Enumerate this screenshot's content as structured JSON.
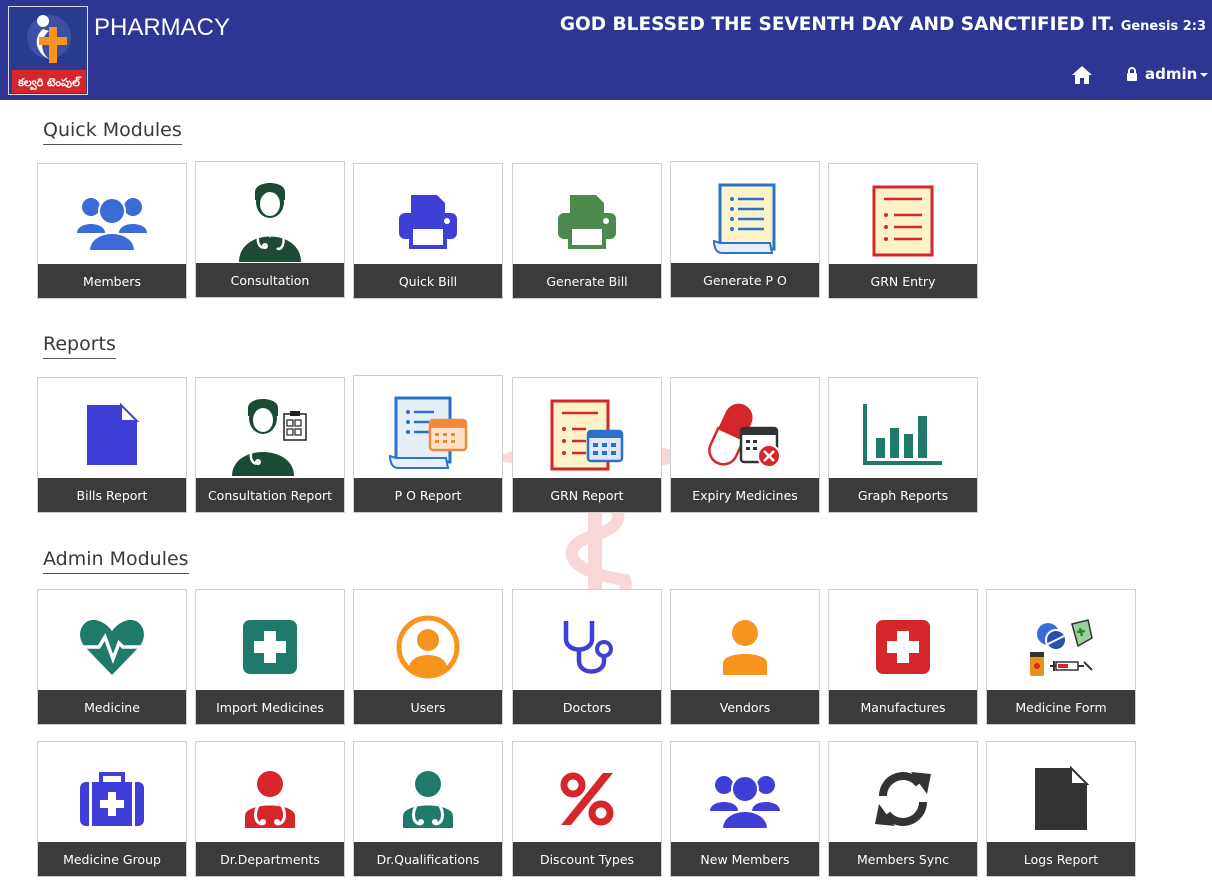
{
  "header": {
    "app_title": "PHARMACY",
    "verse": "GOD BLESSED THE SEVENTH DAY AND SANCTIFIED IT.",
    "verse_ref": "Genesis 2:3",
    "logo_text": "కల్వరి టెంపుల్",
    "user_label": "admin",
    "home_icon": "home-icon",
    "lock_icon": "lock-icon"
  },
  "sections": {
    "quick": "Quick Modules",
    "reports": "Reports",
    "admin": "Admin Modules"
  },
  "quick_modules": [
    "Members",
    "Consultation",
    "Quick Bill",
    "Generate Bill",
    "Generate P O",
    "GRN Entry"
  ],
  "reports": [
    "Bills Report",
    "Consultation Report",
    "P O Report",
    "GRN Report",
    "Expiry Medicines",
    "Graph Reports"
  ],
  "admin_row1": [
    "Medicine",
    "Import Medicines",
    "Users",
    "Doctors",
    "Vendors",
    "Manufactures",
    "Medicine Form"
  ],
  "admin_row2": [
    "Medicine Group",
    "Dr.Departments",
    "Dr.Qualifications",
    "Discount Types",
    "New Members",
    "Members Sync",
    "Logs Report"
  ],
  "colors": {
    "header_bg": "#2e3592",
    "tile_label_bg": "#3b3b3b",
    "blue": "#3b6bd6",
    "indigo": "#3f3fd8",
    "green": "#4e8a4e",
    "teal": "#1f7a6b",
    "red": "#d4262b",
    "orange": "#f7941d",
    "dark_green": "#1d4a35"
  }
}
